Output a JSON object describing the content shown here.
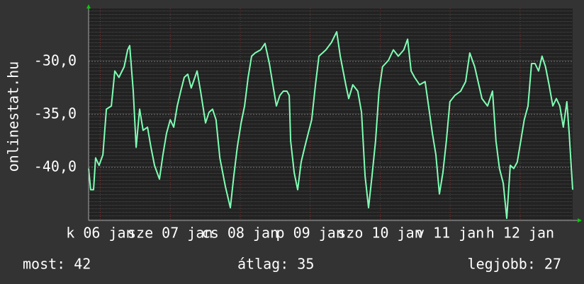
{
  "chart_data": {
    "type": "line",
    "ylabel": "onlinestat.hu",
    "x": [
      0,
      0.7,
      1.7,
      2.4,
      3.6,
      4.9,
      6.1,
      7.8,
      9.0,
      10.4,
      12.2,
      13.4,
      14.1,
      15.3,
      16.3,
      17.5,
      18.7,
      20.2,
      21.4,
      22.6,
      24.3,
      25.5,
      26.7,
      28.0,
      29.2,
      30.4,
      31.6,
      32.8,
      34.0,
      35.2,
      37.2,
      38.4,
      40.1,
      41.3,
      42.5,
      43.7,
      45.0,
      46.9,
      48.6,
      49.8,
      51.0,
      52.3,
      53.5,
      54.7,
      55.9,
      57.1,
      59.0,
      60.5,
      62.0,
      63.2,
      64.4,
      65.6,
      66.8,
      68.0,
      68.8,
      69.3,
      70.5,
      71.7,
      72.9,
      74.1,
      75.3,
      76.5,
      77.8,
      79.0,
      80.2,
      81.4,
      83.3,
      85.1,
      86.3,
      88.2,
      89.2,
      90.6,
      92.3,
      93.6,
      94.8,
      96.0,
      97.2,
      98.4,
      99.6,
      100.8,
      102.8,
      104.5,
      106.2,
      108.1,
      109.4,
      110.6,
      111.8,
      113.5,
      115.4,
      116.6,
      117.9,
      119.1,
      120.3,
      121.5,
      122.7,
      123.9,
      125.6,
      127.6,
      129.3,
      130.7,
      132.4,
      134.9,
      136.8,
      138.5,
      139.7,
      140.9,
      142.2,
      143.4,
      144.6,
      145.8,
      147.0,
      148.2,
      149.4,
      150.7,
      151.9,
      153.1,
      154.3,
      155.5,
      156.7,
      157.9,
      159.2,
      160.4,
      161.6,
      162.8,
      164.0,
      164.8,
      166.0
    ],
    "series": [
      {
        "color": "#7fffb4",
        "values": [
          -40.1,
          -42.1,
          -42.1,
          -39.1,
          -39.8,
          -38.8,
          -34.5,
          -34.2,
          -30.9,
          -31.5,
          -30.5,
          -28.9,
          -28.5,
          -32.8,
          -38.1,
          -34.5,
          -36.5,
          -36.2,
          -38.1,
          -39.8,
          -41.1,
          -38.8,
          -36.8,
          -35.5,
          -36.2,
          -34.2,
          -32.8,
          -31.5,
          -31.2,
          -32.5,
          -30.9,
          -32.8,
          -35.8,
          -34.8,
          -34.5,
          -35.5,
          -39.1,
          -41.8,
          -43.8,
          -40.8,
          -38.1,
          -35.8,
          -34.2,
          -31.5,
          -29.5,
          -29.2,
          -28.9,
          -28.3,
          -30.2,
          -32.2,
          -34.2,
          -33.2,
          -32.8,
          -32.8,
          -33.2,
          -37.5,
          -40.5,
          -42.1,
          -39.5,
          -38.1,
          -36.8,
          -35.5,
          -32.2,
          -29.5,
          -29.2,
          -28.9,
          -28.2,
          -27.2,
          -29.5,
          -32.2,
          -33.5,
          -32.2,
          -32.8,
          -34.8,
          -40.8,
          -43.8,
          -40.8,
          -37.5,
          -32.8,
          -30.5,
          -29.9,
          -28.9,
          -29.5,
          -28.9,
          -27.9,
          -30.9,
          -31.5,
          -32.2,
          -31.9,
          -34.2,
          -36.8,
          -38.8,
          -42.5,
          -40.5,
          -37.5,
          -33.8,
          -33.2,
          -32.8,
          -31.9,
          -29.2,
          -30.5,
          -33.5,
          -34.2,
          -32.8,
          -37.5,
          -40.1,
          -41.5,
          -44.8,
          -39.8,
          -40.1,
          -39.5,
          -37.5,
          -35.5,
          -34.2,
          -30.2,
          -30.2,
          -30.9,
          -29.5,
          -30.5,
          -32.2,
          -34.2,
          -33.5,
          -34.2,
          -36.2,
          -33.8,
          -36.8,
          -42.1
        ]
      }
    ],
    "xlim": [
      0,
      166
    ],
    "ylim": [
      -45,
      -25
    ],
    "xticks": [
      {
        "value": 4,
        "label": "k 06 jan"
      },
      {
        "value": 28,
        "label": "sze 07 jan"
      },
      {
        "value": 52,
        "label": "cs 08 jan"
      },
      {
        "value": 76,
        "label": "p 09 jan"
      },
      {
        "value": 100,
        "label": "szo 10 jan"
      },
      {
        "value": 124,
        "label": "v 11 jan"
      },
      {
        "value": 148,
        "label": "h 12 jan"
      }
    ],
    "yticks": [
      {
        "value": -40,
        "label": "-40,0"
      },
      {
        "value": -35,
        "label": "-35,0"
      },
      {
        "value": -30,
        "label": "-30,0"
      }
    ],
    "grid": true
  },
  "footer": {
    "current": "most: 42",
    "average": "átlag: 35",
    "best": "legjobb: 27"
  }
}
